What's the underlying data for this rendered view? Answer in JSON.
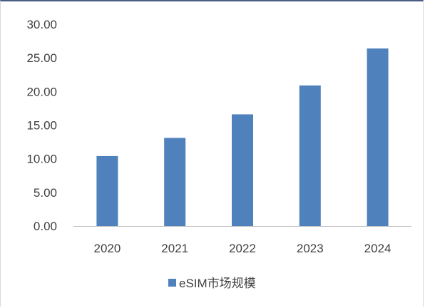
{
  "chart_data": {
    "type": "bar",
    "categories": [
      "2020",
      "2021",
      "2022",
      "2023",
      "2024"
    ],
    "series": [
      {
        "name": "eSIM市场规模",
        "values": [
          10.4,
          13.1,
          16.6,
          20.9,
          26.4
        ]
      }
    ],
    "ylim": [
      0,
      30
    ],
    "y_ticks": [
      "0.00",
      "5.00",
      "10.00",
      "15.00",
      "20.00",
      "25.00",
      "30.00"
    ],
    "grid": false,
    "legend_position": "bottom",
    "colors": {
      "bar": "#4f81bd",
      "axis": "#bfbfbf",
      "text": "#404040",
      "frame_top": "#4a5d86"
    }
  }
}
